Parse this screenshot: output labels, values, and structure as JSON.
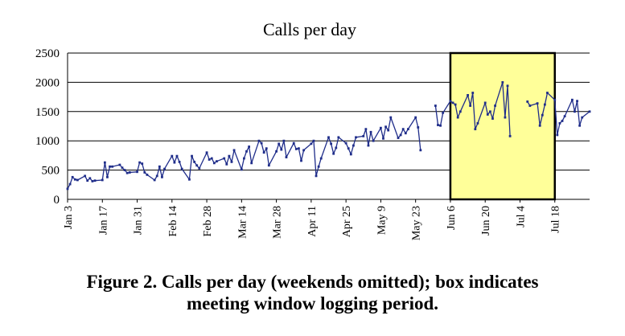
{
  "chart_data": {
    "type": "line",
    "title": "Calls per day",
    "xlabel": "",
    "ylabel": "",
    "ylim": [
      0,
      2500
    ],
    "yticks": [
      0,
      500,
      1000,
      1500,
      2000,
      2500
    ],
    "x_tick_labels": [
      "Jan 3",
      "Jan 17",
      "Jan 31",
      "Feb 14",
      "Feb 28",
      "Mar 14",
      "Mar 28",
      "Apr 11",
      "Apr 25",
      "May 9",
      "May 23",
      "Jun 6",
      "Jun 20",
      "Jul 4",
      "Jul 18"
    ],
    "grid": "horizontal",
    "legend": "none",
    "line_color": "#1f2d8a",
    "box_fill": "#ffff99",
    "highlight_box": {
      "x_start": "Jun 6",
      "x_end": "Jul 18",
      "y_start": 0,
      "y_end": 2500
    },
    "series": [
      {
        "segments": [
          [
            [
              "Jan 3",
              180
            ],
            [
              "Jan 4",
              260
            ],
            [
              "Jan 5",
              380
            ],
            [
              "Jan 6",
              340
            ],
            [
              "Jan 7",
              330
            ],
            [
              "Jan 10",
              400
            ],
            [
              "Jan 11",
              320
            ],
            [
              "Jan 12",
              360
            ],
            [
              "Jan 13",
              310
            ],
            [
              "Jan 14",
              320
            ],
            [
              "Jan 17",
              330
            ],
            [
              "Jan 18",
              630
            ],
            [
              "Jan 19",
              380
            ],
            [
              "Jan 20",
              560
            ],
            [
              "Jan 21",
              560
            ],
            [
              "Jan 24",
              590
            ],
            [
              "Jan 25",
              540
            ],
            [
              "Jan 26",
              500
            ],
            [
              "Jan 27",
              450
            ],
            [
              "Jan 28",
              460
            ],
            [
              "Jan 31",
              470
            ],
            [
              "Feb 1",
              630
            ],
            [
              "Feb 2",
              610
            ],
            [
              "Feb 3",
              460
            ],
            [
              "Feb 4",
              420
            ],
            [
              "Feb 7",
              330
            ],
            [
              "Feb 8",
              400
            ],
            [
              "Feb 9",
              560
            ],
            [
              "Feb 10",
              380
            ],
            [
              "Feb 11",
              520
            ],
            [
              "Feb 14",
              740
            ],
            [
              "Feb 15",
              630
            ],
            [
              "Feb 16",
              740
            ],
            [
              "Feb 17",
              640
            ],
            [
              "Feb 18",
              520
            ],
            [
              "Feb 21",
              340
            ],
            [
              "Feb 22",
              740
            ],
            [
              "Feb 23",
              640
            ],
            [
              "Feb 24",
              580
            ],
            [
              "Feb 25",
              530
            ],
            [
              "Feb 28",
              800
            ],
            [
              "Mar 1",
              680
            ],
            [
              "Mar 2",
              700
            ],
            [
              "Mar 3",
              620
            ],
            [
              "Mar 4",
              650
            ],
            [
              "Mar 7",
              700
            ],
            [
              "Mar 8",
              600
            ],
            [
              "Mar 9",
              740
            ],
            [
              "Mar 10",
              640
            ],
            [
              "Mar 11",
              840
            ],
            [
              "Mar 14",
              510
            ],
            [
              "Mar 15",
              700
            ],
            [
              "Mar 16",
              820
            ],
            [
              "Mar 17",
              900
            ],
            [
              "Mar 18",
              620
            ],
            [
              "Mar 21",
              1000
            ],
            [
              "Mar 22",
              960
            ],
            [
              "Mar 23",
              800
            ],
            [
              "Mar 24",
              870
            ],
            [
              "Mar 25",
              580
            ],
            [
              "Mar 28",
              820
            ],
            [
              "Mar 29",
              950
            ],
            [
              "Mar 30",
              850
            ],
            [
              "Mar 31",
              1000
            ],
            [
              "Apr 1",
              720
            ],
            [
              "Apr 4",
              960
            ],
            [
              "Apr 5",
              860
            ],
            [
              "Apr 6",
              870
            ],
            [
              "Apr 7",
              660
            ],
            [
              "Apr 8",
              840
            ],
            [
              "Apr 11",
              950
            ],
            [
              "Apr 12",
              1000
            ],
            [
              "Apr 13",
              400
            ],
            [
              "Apr 14",
              560
            ],
            [
              "Apr 15",
              700
            ],
            [
              "Apr 18",
              1060
            ],
            [
              "Apr 19",
              950
            ],
            [
              "Apr 20",
              780
            ],
            [
              "Apr 21",
              880
            ],
            [
              "Apr 22",
              1060
            ],
            [
              "Apr 25",
              960
            ],
            [
              "Apr 26",
              870
            ],
            [
              "Apr 27",
              770
            ],
            [
              "Apr 28",
              920
            ],
            [
              "Apr 29",
              1060
            ],
            [
              "May 2",
              1080
            ],
            [
              "May 3",
              1200
            ],
            [
              "May 4",
              920
            ],
            [
              "May 5",
              1150
            ],
            [
              "May 6",
              1000
            ],
            [
              "May 9",
              1220
            ],
            [
              "May 10",
              1040
            ],
            [
              "May 11",
              1240
            ],
            [
              "May 12",
              1180
            ],
            [
              "May 13",
              1400
            ],
            [
              "May 16",
              1050
            ],
            [
              "May 17",
              1100
            ],
            [
              "May 18",
              1200
            ],
            [
              "May 19",
              1130
            ],
            [
              "May 20",
              1200
            ],
            [
              "May 23",
              1400
            ],
            [
              "May 24",
              1230
            ],
            [
              "May 25",
              840
            ]
          ],
          [
            [
              "May 31",
              1600
            ],
            [
              "Jun 1",
              1270
            ],
            [
              "Jun 2",
              1260
            ],
            [
              "Jun 3",
              1480
            ],
            [
              "Jun 6",
              1680
            ],
            [
              "Jun 7",
              1650
            ],
            [
              "Jun 8",
              1620
            ],
            [
              "Jun 9",
              1400
            ],
            [
              "Jun 10",
              1500
            ],
            [
              "Jun 13",
              1780
            ],
            [
              "Jun 14",
              1600
            ],
            [
              "Jun 15",
              1820
            ],
            [
              "Jun 16",
              1200
            ],
            [
              "Jun 17",
              1300
            ],
            [
              "Jun 20",
              1650
            ],
            [
              "Jun 21",
              1450
            ],
            [
              "Jun 22",
              1500
            ],
            [
              "Jun 23",
              1380
            ],
            [
              "Jun 24",
              1600
            ],
            [
              "Jun 27",
              2000
            ],
            [
              "Jun 28",
              1400
            ],
            [
              "Jun 29",
              1940
            ],
            [
              "Jun 30",
              1080
            ]
          ],
          [
            [
              "Jul 7",
              1670
            ],
            [
              "Jul 8",
              1600
            ],
            [
              "Jul 11",
              1640
            ],
            [
              "Jul 12",
              1260
            ],
            [
              "Jul 13",
              1440
            ],
            [
              "Jul 14",
              1620
            ],
            [
              "Jul 15",
              1820
            ],
            [
              "Jul 18",
              1700
            ],
            [
              "Jul 19",
              1100
            ],
            [
              "Jul 20",
              1300
            ],
            [
              "Jul 21",
              1340
            ],
            [
              "Jul 22",
              1420
            ],
            [
              "Jul 25",
              1700
            ],
            [
              "Jul 26",
              1500
            ],
            [
              "Jul 27",
              1680
            ],
            [
              "Jul 28",
              1260
            ],
            [
              "Jul 29",
              1400
            ],
            [
              "Aug 1",
              1500
            ]
          ]
        ]
      }
    ]
  },
  "caption": {
    "line1": "Figure 2. Calls per day (weekends omitted); box indicates",
    "line2": "meeting window logging period."
  }
}
